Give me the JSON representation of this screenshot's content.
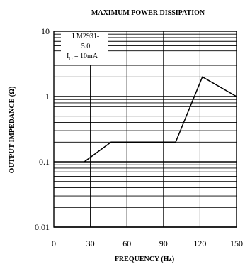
{
  "chart_data": {
    "type": "line",
    "title": "MAXIMUM POWER DISSIPATION",
    "xlabel": "FREQUENCY (Hz)",
    "ylabel": "OUTPUT IMPEDANCE (Ω)",
    "xlim": [
      0,
      150
    ],
    "ylim": [
      0.01,
      10
    ],
    "y_scale": "log",
    "grid": true,
    "x_ticks": [
      {
        "value": 0,
        "label": "0"
      },
      {
        "value": 30,
        "label": "30"
      },
      {
        "value": 60,
        "label": "60"
      },
      {
        "value": 90,
        "label": "90"
      },
      {
        "value": 120,
        "label": "120"
      },
      {
        "value": 150,
        "label": "150"
      }
    ],
    "y_ticks": [
      {
        "value": 10,
        "label": "10"
      },
      {
        "value": 1,
        "label": "1"
      },
      {
        "value": 0.1,
        "label": "0.1"
      },
      {
        "value": 0.01,
        "label": "0.01"
      }
    ],
    "annotation": {
      "line1": "LM2931-",
      "line2": "5.0",
      "io_symbol": "I",
      "io_sub": "O",
      "io_text": " = 10mA"
    },
    "series": [
      {
        "x": [
          25,
          47,
          100,
          122,
          150
        ],
        "y": [
          0.1,
          0.2,
          0.2,
          2,
          1
        ]
      }
    ]
  }
}
